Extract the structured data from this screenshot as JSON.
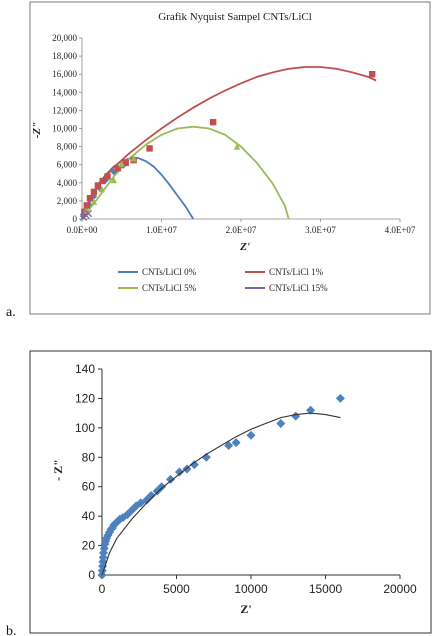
{
  "chart_data": [
    {
      "panel_label": "a.",
      "type": "scatter",
      "title": "Grafik  Nyquist  Sampel  CNTs/LiCl",
      "xlabel": "Z'",
      "ylabel": "-Z\"",
      "xlim": [
        0,
        40000000
      ],
      "ylim": [
        0,
        20000
      ],
      "xticks": [
        "0.0E+00",
        "1.0E+07",
        "2.0E+07",
        "3.0E+07",
        "4.0E+07"
      ],
      "yticks": [
        "0",
        "2,000",
        "4,000",
        "6,000",
        "8,000",
        "10,000",
        "12,000",
        "14,000",
        "16,000",
        "18,000",
        "20,000"
      ],
      "grid": false,
      "legend_position": "bottom",
      "series": [
        {
          "name": "CNTs/LiCl 0%",
          "color": "#4a7ebb",
          "marker": "diamond",
          "points": [
            [
              150000,
              300
            ],
            [
              400000,
              800
            ],
            [
              900000,
              1600
            ],
            [
              1500000,
              2500
            ],
            [
              2200000,
              3400
            ],
            [
              3000000,
              4300
            ],
            [
              4000000,
              5200
            ],
            [
              5200000,
              5900
            ],
            [
              6500000,
              6600
            ]
          ],
          "fit": [
            [
              0,
              0
            ],
            [
              1000000,
              2300
            ],
            [
              2000000,
              3800
            ],
            [
              3000000,
              4900
            ],
            [
              4000000,
              5800
            ],
            [
              5000000,
              6400
            ],
            [
              6000000,
              6700
            ],
            [
              7000000,
              6750
            ],
            [
              8000000,
              6400
            ],
            [
              9000000,
              5800
            ],
            [
              10000000,
              4900
            ],
            [
              11000000,
              3800
            ],
            [
              12000000,
              2600
            ],
            [
              13000000,
              1400
            ],
            [
              14000000,
              0
            ]
          ]
        },
        {
          "name": "CNTs/LiCl 1%",
          "color": "#c0504d",
          "marker": "square",
          "points": [
            [
              300000,
              800
            ],
            [
              600000,
              1500
            ],
            [
              1000000,
              2300
            ],
            [
              1500000,
              3000
            ],
            [
              2000000,
              3700
            ],
            [
              2600000,
              4200
            ],
            [
              3200000,
              4700
            ],
            [
              4500000,
              5600
            ],
            [
              5500000,
              6200
            ],
            [
              6500000,
              6500
            ],
            [
              8500000,
              7800
            ],
            [
              16500000,
              10700
            ],
            [
              36500000,
              16000
            ]
          ],
          "fit": [
            [
              0,
              0
            ],
            [
              2000000,
              3800
            ],
            [
              4000000,
              5700
            ],
            [
              6000000,
              7300
            ],
            [
              8000000,
              8700
            ],
            [
              10000000,
              10000
            ],
            [
              12000000,
              11200
            ],
            [
              14000000,
              12300
            ],
            [
              16000000,
              13300
            ],
            [
              18000000,
              14200
            ],
            [
              20000000,
              15000
            ],
            [
              22000000,
              15700
            ],
            [
              24000000,
              16200
            ],
            [
              26000000,
              16600
            ],
            [
              28000000,
              16800
            ],
            [
              30000000,
              16800
            ],
            [
              32000000,
              16600
            ],
            [
              34000000,
              16200
            ],
            [
              36000000,
              15700
            ],
            [
              37000000,
              15300
            ]
          ]
        },
        {
          "name": "CNTs/LiCl 5%",
          "color": "#9bbb59",
          "marker": "triangle",
          "points": [
            [
              500000,
              800
            ],
            [
              1500000,
              1800
            ],
            [
              2500000,
              3200
            ],
            [
              4000000,
              4200
            ],
            [
              5000000,
              6000
            ],
            [
              6500000,
              6600
            ],
            [
              19500000,
              7900
            ]
          ],
          "fit": [
            [
              0,
              0
            ],
            [
              2000000,
              2300
            ],
            [
              4000000,
              4700
            ],
            [
              6000000,
              6700
            ],
            [
              8000000,
              8200
            ],
            [
              10000000,
              9300
            ],
            [
              12000000,
              10000
            ],
            [
              14000000,
              10200
            ],
            [
              16000000,
              10000
            ],
            [
              18000000,
              9300
            ],
            [
              20000000,
              8000
            ],
            [
              22000000,
              6200
            ],
            [
              24000000,
              3900
            ],
            [
              25500000,
              1500
            ],
            [
              26000000,
              0
            ]
          ]
        },
        {
          "name": "CNTs/LiCl 15%",
          "color": "#8064a2",
          "marker": "x",
          "points": [
            [
              200000,
              200
            ],
            [
              500000,
              400
            ],
            [
              800000,
              600
            ]
          ],
          "fit": []
        }
      ]
    },
    {
      "panel_label": "b.",
      "type": "scatter",
      "title": "",
      "xlabel": "Z'",
      "ylabel": "- Z\"",
      "xlim": [
        0,
        20000
      ],
      "ylim": [
        0,
        140
      ],
      "xticks": [
        "0",
        "5000",
        "10000",
        "15000",
        "20000"
      ],
      "yticks": [
        "0",
        "20",
        "40",
        "60",
        "80",
        "100",
        "120",
        "140"
      ],
      "grid": false,
      "series": [
        {
          "name": "",
          "color": "#4f81bd",
          "marker": "diamond",
          "points": [
            [
              0,
              0
            ],
            [
              20,
              3
            ],
            [
              40,
              6
            ],
            [
              60,
              9
            ],
            [
              80,
              12
            ],
            [
              100,
              15
            ],
            [
              150,
              18
            ],
            [
              200,
              21
            ],
            [
              250,
              23
            ],
            [
              300,
              25
            ],
            [
              400,
              27
            ],
            [
              500,
              29
            ],
            [
              600,
              31
            ],
            [
              700,
              32
            ],
            [
              800,
              34
            ],
            [
              900,
              35
            ],
            [
              1000,
              36
            ],
            [
              1200,
              38
            ],
            [
              1400,
              39
            ],
            [
              1700,
              41
            ],
            [
              2000,
              44
            ],
            [
              2300,
              47
            ],
            [
              2600,
              49
            ],
            [
              3000,
              51
            ],
            [
              3300,
              54
            ],
            [
              3700,
              57
            ],
            [
              4000,
              60
            ],
            [
              4600,
              65
            ],
            [
              5200,
              70
            ],
            [
              5700,
              72
            ],
            [
              6200,
              75
            ],
            [
              7000,
              80
            ],
            [
              8500,
              88
            ],
            [
              9000,
              90
            ],
            [
              10000,
              95
            ],
            [
              12000,
              103
            ],
            [
              13000,
              108
            ],
            [
              14000,
              112
            ],
            [
              16000,
              120
            ]
          ],
          "fit": [
            [
              0,
              0
            ],
            [
              500,
              15
            ],
            [
              1000,
              25
            ],
            [
              2000,
              38
            ],
            [
              3000,
              49
            ],
            [
              4000,
              59
            ],
            [
              5000,
              67
            ],
            [
              6000,
              75
            ],
            [
              7000,
              82
            ],
            [
              8000,
              88
            ],
            [
              9000,
              94
            ],
            [
              10000,
              99
            ],
            [
              11000,
              103
            ],
            [
              12000,
              107
            ],
            [
              13000,
              109
            ],
            [
              14000,
              110
            ],
            [
              15000,
              109
            ],
            [
              16000,
              107
            ]
          ]
        }
      ]
    }
  ]
}
